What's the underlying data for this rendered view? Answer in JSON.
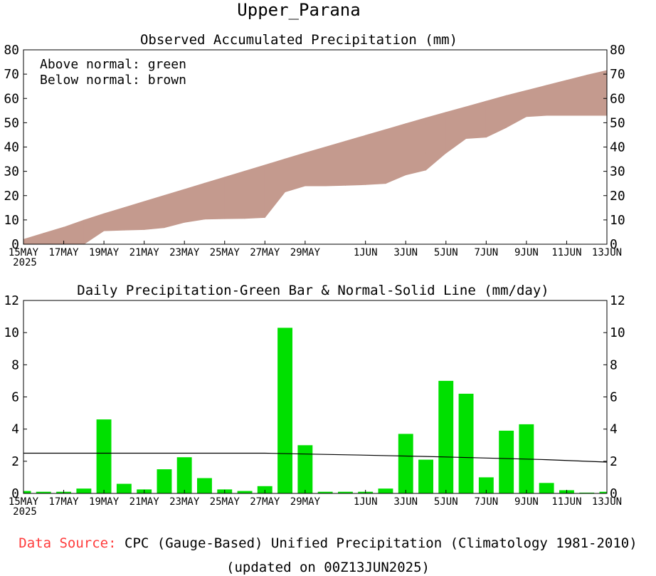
{
  "title": "Upper_Parana",
  "colors": {
    "above": "#2db04b",
    "below": "#c49a8e",
    "bar": "#00e000",
    "line": "#000000",
    "source_label": "#ff3b3b"
  },
  "chart_data": [
    {
      "type": "area",
      "title": "Observed Accumulated Precipitation (mm)",
      "legend_lines": [
        "Above normal: green",
        "Below normal: brown"
      ],
      "x_start_label": "15MAY",
      "year_label": "2025",
      "xlim": [
        0,
        29
      ],
      "ylim": [
        0,
        80
      ],
      "yticks": [
        0,
        10,
        20,
        30,
        40,
        50,
        60,
        70,
        80
      ],
      "xticks": [
        {
          "day": 0,
          "label": "15MAY"
        },
        {
          "day": 2,
          "label": "17MAY"
        },
        {
          "day": 4,
          "label": "19MAY"
        },
        {
          "day": 6,
          "label": "21MAY"
        },
        {
          "day": 8,
          "label": "23MAY"
        },
        {
          "day": 10,
          "label": "25MAY"
        },
        {
          "day": 12,
          "label": "27MAY"
        },
        {
          "day": 14,
          "label": "29MAY"
        },
        {
          "day": 17,
          "label": "1JUN"
        },
        {
          "day": 19,
          "label": "3JUN"
        },
        {
          "day": 21,
          "label": "5JUN"
        },
        {
          "day": 23,
          "label": "7JUN"
        },
        {
          "day": 25,
          "label": "9JUN"
        },
        {
          "day": 27,
          "label": "11JUN"
        },
        {
          "day": 29,
          "label": "13JUN"
        }
      ],
      "series": [
        {
          "name": "observed_accumulated",
          "x": [
            0,
            1,
            2,
            3,
            4,
            5,
            6,
            7,
            8,
            9,
            10,
            11,
            12,
            13,
            14,
            15,
            16,
            17,
            18,
            19,
            20,
            21,
            22,
            23,
            24,
            25,
            26,
            27,
            28,
            29
          ],
          "values": [
            0,
            0,
            0,
            0,
            5.5,
            5.8,
            6,
            6.8,
            9,
            10.3,
            10.5,
            10.6,
            11,
            21.5,
            24,
            24,
            24.2,
            24.5,
            25,
            28.5,
            30.5,
            37.5,
            43.5,
            44,
            48,
            52.5,
            53,
            53,
            53,
            53
          ]
        },
        {
          "name": "normal_accumulated",
          "x": [
            0,
            1,
            2,
            3,
            4,
            5,
            6,
            7,
            8,
            9,
            10,
            11,
            12,
            13,
            14,
            15,
            16,
            17,
            18,
            19,
            20,
            21,
            22,
            23,
            24,
            25,
            26,
            27,
            28,
            29
          ],
          "values": [
            2,
            4.5,
            7,
            9.9,
            12.6,
            15.1,
            17.6,
            20.1,
            22.6,
            25.1,
            27.6,
            30.1,
            32.6,
            35.1,
            37.6,
            40,
            42.4,
            44.8,
            47.2,
            49.6,
            52,
            54.3,
            56.6,
            58.9,
            61.2,
            63.3,
            65.4,
            67.5,
            69.6,
            71.5
          ]
        }
      ]
    },
    {
      "type": "bar",
      "title": "Daily Precipitation-Green Bar & Normal-Solid Line (mm/day)",
      "x_start_label": "15MAY",
      "year_label": "2025",
      "xlim": [
        0,
        29
      ],
      "ylim": [
        0,
        12
      ],
      "yticks": [
        0,
        2,
        4,
        6,
        8,
        10,
        12
      ],
      "xticks": [
        {
          "day": 0,
          "label": "15MAY"
        },
        {
          "day": 2,
          "label": "17MAY"
        },
        {
          "day": 4,
          "label": "19MAY"
        },
        {
          "day": 6,
          "label": "21MAY"
        },
        {
          "day": 8,
          "label": "23MAY"
        },
        {
          "day": 10,
          "label": "25MAY"
        },
        {
          "day": 12,
          "label": "27MAY"
        },
        {
          "day": 14,
          "label": "29MAY"
        },
        {
          "day": 17,
          "label": "1JUN"
        },
        {
          "day": 19,
          "label": "3JUN"
        },
        {
          "day": 21,
          "label": "5JUN"
        },
        {
          "day": 23,
          "label": "7JUN"
        },
        {
          "day": 25,
          "label": "9JUN"
        },
        {
          "day": 27,
          "label": "11JUN"
        },
        {
          "day": 29,
          "label": "13JUN"
        }
      ],
      "series": [
        {
          "name": "daily_precipitation",
          "x": [
            0,
            1,
            2,
            3,
            4,
            5,
            6,
            7,
            8,
            9,
            10,
            11,
            12,
            13,
            14,
            15,
            16,
            17,
            18,
            19,
            20,
            21,
            22,
            23,
            24,
            25,
            26,
            27,
            28,
            29
          ],
          "values": [
            0.15,
            0.1,
            0.1,
            0.3,
            4.6,
            0.6,
            0.25,
            1.5,
            2.25,
            0.95,
            0.25,
            0.15,
            0.45,
            10.3,
            3,
            0.1,
            0.1,
            0.1,
            0.3,
            3.7,
            2.1,
            7,
            6.2,
            1,
            3.9,
            4.3,
            0.65,
            0.2,
            0.05,
            0.1
          ]
        },
        {
          "name": "normal_daily",
          "x": [
            0,
            4,
            8,
            12,
            14,
            17,
            20,
            23,
            26,
            29
          ],
          "values": [
            2.5,
            2.5,
            2.5,
            2.5,
            2.45,
            2.38,
            2.3,
            2.2,
            2.1,
            1.95
          ]
        }
      ]
    }
  ],
  "footer": {
    "source_label": "Data Source:",
    "source_text": "CPC (Gauge-Based) Unified Precipitation (Climatology 1981-2010)",
    "updated": "(updated on 00Z13JUN2025)"
  }
}
